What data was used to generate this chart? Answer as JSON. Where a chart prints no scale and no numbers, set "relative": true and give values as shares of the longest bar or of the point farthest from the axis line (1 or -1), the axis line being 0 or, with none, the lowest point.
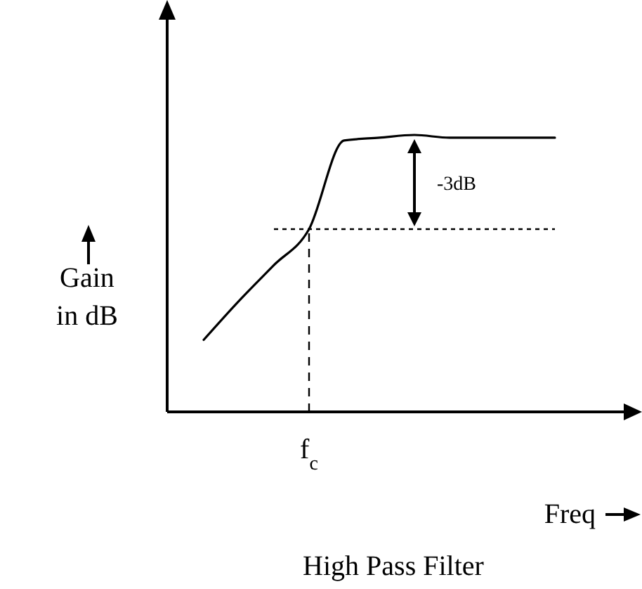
{
  "chart_data": {
    "type": "line",
    "title": "High Pass Filter",
    "xlabel": "Freq",
    "ylabel": "Gain\nin dB",
    "relative": true,
    "categories": [
      null,
      null,
      null,
      null,
      null,
      null,
      null,
      null,
      null,
      null,
      null
    ],
    "series": [
      {
        "color": "#000000",
        "values": [
          0.26,
          0.4,
          0.53,
          0.66,
          0.98,
          0.99,
          1,
          0.99,
          0.99,
          0.99,
          0.99
        ]
      },
      {
        "color": "#000000",
        "line_style": "dotted",
        "values": [
          null,
          null,
          0.66,
          0.66,
          0.66,
          0.66,
          0.66,
          0.66,
          0.66,
          0.66,
          0.66
        ]
      }
    ],
    "annotations": [
      "f$_{c}$",
      "-3dB"
    ]
  }
}
